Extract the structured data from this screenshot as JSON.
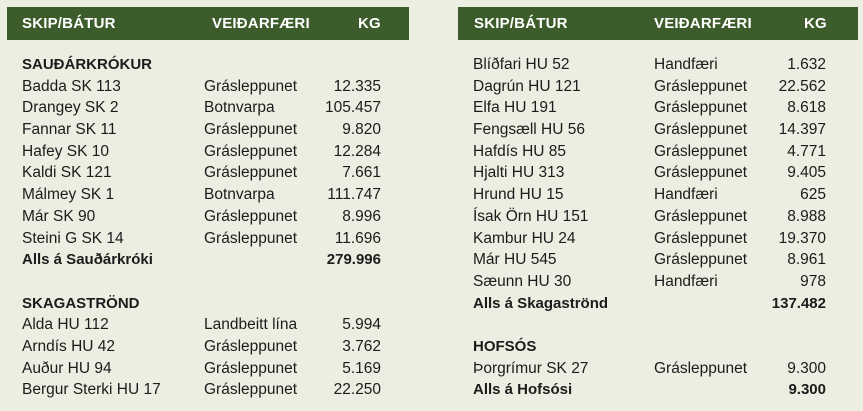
{
  "left": {
    "header": {
      "name": "SKIP/BÁTUR",
      "gear": "VEIÐARFÆRI",
      "kg": "KG"
    },
    "sections": [
      {
        "title": "SAUÐÁRKRÓKUR",
        "rows": [
          {
            "name": "Badda SK 113",
            "gear": "Grásleppunet",
            "kg": "12.335"
          },
          {
            "name": "Drangey SK 2",
            "gear": "Botnvarpa",
            "kg": "105.457"
          },
          {
            "name": "Fannar SK 11",
            "gear": "Grásleppunet",
            "kg": "9.820"
          },
          {
            "name": "Hafey SK 10",
            "gear": "Grásleppunet",
            "kg": "12.284"
          },
          {
            "name": "Kaldi SK 121",
            "gear": "Grásleppunet",
            "kg": "7.661"
          },
          {
            "name": "Málmey SK 1",
            "gear": "Botnvarpa",
            "kg": "111.747"
          },
          {
            "name": "Már SK 90",
            "gear": "Grásleppunet",
            "kg": "8.996"
          },
          {
            "name": "Steini G SK 14",
            "gear": "Grásleppunet",
            "kg": "11.696"
          }
        ],
        "total": {
          "label": "Alls á Sauðárkróki",
          "kg": "279.996"
        }
      },
      {
        "title": "SKAGASTRÖND",
        "rows": [
          {
            "name": "Alda HU 112",
            "gear": "Landbeitt lína",
            "kg": "5.994"
          },
          {
            "name": "Arndís HU 42",
            "gear": "Grásleppunet",
            "kg": "3.762"
          },
          {
            "name": "Auður HU 94",
            "gear": "Grásleppunet",
            "kg": "5.169"
          },
          {
            "name": "Bergur Sterki HU 17",
            "gear": "Grásleppunet",
            "kg": "22.250"
          }
        ]
      }
    ]
  },
  "right": {
    "header": {
      "name": "SKIP/BÁTUR",
      "gear": "VEIÐARFÆRI",
      "kg": "KG"
    },
    "sections": [
      {
        "rows": [
          {
            "name": "Blíðfari HU 52",
            "gear": "Handfæri",
            "kg": "1.632"
          },
          {
            "name": "Dagrún HU 121",
            "gear": "Grásleppunet",
            "kg": "22.562"
          },
          {
            "name": "Elfa HU 191",
            "gear": "Grásleppunet",
            "kg": "8.618"
          },
          {
            "name": "Fengsæll HU 56",
            "gear": "Grásleppunet",
            "kg": "14.397"
          },
          {
            "name": "Hafdís HU 85",
            "gear": "Grásleppunet",
            "kg": "4.771"
          },
          {
            "name": "Hjalti HU 313",
            "gear": "Grásleppunet",
            "kg": "9.405"
          },
          {
            "name": "Hrund HU 15",
            "gear": "Handfæri",
            "kg": "625"
          },
          {
            "name": "Ísak Örn HU 151",
            "gear": "Grásleppunet",
            "kg": "8.988"
          },
          {
            "name": "Kambur HU 24",
            "gear": "Grásleppunet",
            "kg": "19.370"
          },
          {
            "name": "Már HU 545",
            "gear": "Grásleppunet",
            "kg": "8.961"
          },
          {
            "name": "Sæunn HU 30",
            "gear": "Handfæri",
            "kg": "978"
          }
        ],
        "total": {
          "label": "Alls á Skagaströnd",
          "kg": "137.482"
        }
      },
      {
        "title": "HOFSÓS",
        "rows": [
          {
            "name": "Þorgrímur SK 27",
            "gear": "Grásleppunet",
            "kg": "9.300"
          }
        ],
        "total": {
          "label": "Alls á Hofsósi",
          "kg": "9.300"
        }
      }
    ]
  },
  "colors": {
    "header_bg": "#3d5c2b",
    "header_text": "#ffffff",
    "page_bg": "#ebeee0",
    "text": "#1c1c1c"
  }
}
